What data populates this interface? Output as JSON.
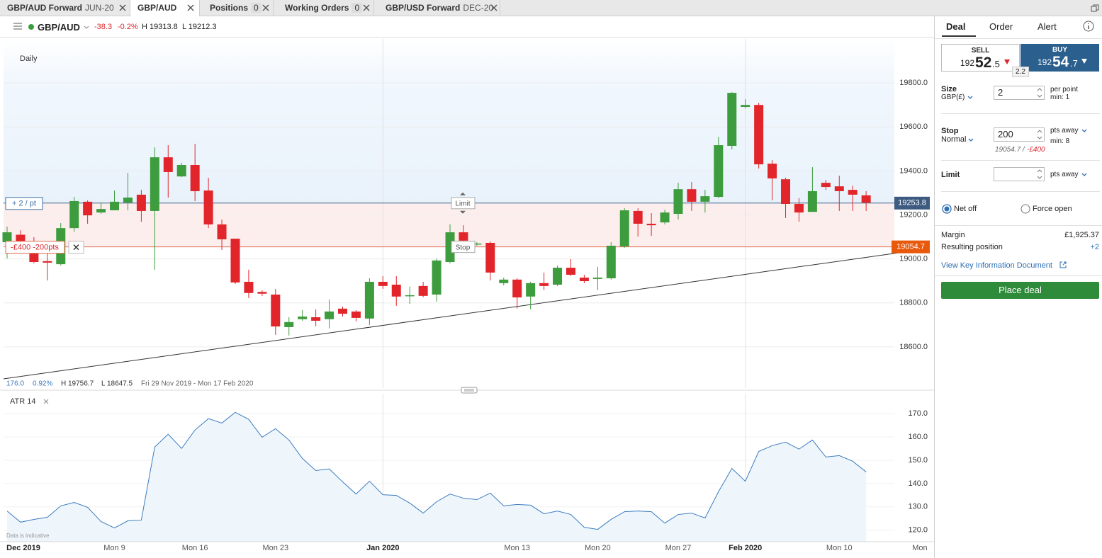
{
  "tabs": [
    {
      "name": "GBP/AUD Forward",
      "suffix": "JUN-20"
    },
    {
      "name": "GBP/AUD"
    },
    {
      "name": "Positions",
      "count": "0"
    },
    {
      "name": "Working Orders",
      "count": "0"
    },
    {
      "name": "GBP/USD Forward",
      "suffix": "DEC-20"
    }
  ],
  "instrument": {
    "name": "GBP/AUD",
    "change": "-38.3",
    "change_pct": "-0.2%",
    "high": "H 19313.8",
    "low": "L 19212.3"
  },
  "chart_data": [
    {
      "type": "candlestick",
      "title": "Daily",
      "categories": [
        null,
        "Dec 2019",
        null,
        null,
        null,
        null,
        null,
        null,
        "Mon 9",
        null,
        null,
        null,
        null,
        null,
        "Mon 16",
        null,
        null,
        null,
        null,
        null,
        "Mon 23",
        null,
        null,
        null,
        null,
        null,
        null,
        null,
        "Jan 2020",
        null,
        null,
        null,
        null,
        null,
        null,
        null,
        null,
        null,
        "Mon 13",
        null,
        null,
        null,
        null,
        null,
        "Mon 20",
        null,
        null,
        null,
        null,
        null,
        "Mon 27",
        null,
        null,
        null,
        null,
        "Feb 2020",
        null,
        null,
        null,
        null,
        null,
        null,
        "Mon 10",
        null,
        null,
        null,
        null,
        null,
        "Mon"
      ],
      "open": [
        19076,
        19110,
        19066,
        18990,
        18976,
        19140,
        19260,
        19211,
        19221,
        19256,
        19292,
        19218,
        19462,
        19375,
        19427,
        19311,
        19157,
        19092,
        18896,
        18850,
        18838,
        18690,
        18726,
        18735,
        18726,
        18774,
        18761,
        18729,
        18896,
        18883,
        18832,
        18877,
        18838,
        18986,
        19121,
        19066,
        19073,
        18890,
        18906,
        18829,
        18890,
        18883,
        18960,
        18915,
        18909,
        18912,
        19057,
        19218,
        19160,
        19166,
        19205,
        19317,
        19260,
        19282,
        19514,
        19691,
        19700,
        19433,
        19362,
        19250,
        19214,
        19346,
        19330,
        19314,
        19289,
        null,
        null,
        null,
        null
      ],
      "high": [
        19147,
        19130,
        19099,
        19066,
        19163,
        19282,
        19266,
        19253,
        19311,
        19391,
        19314,
        19507,
        19517,
        19437,
        19523,
        19369,
        19179,
        19092,
        18951,
        18857,
        18864,
        18735,
        18767,
        18770,
        18815,
        18783,
        18767,
        18912,
        18922,
        18922,
        18874,
        18896,
        19002,
        19157,
        19153,
        19076,
        19079,
        18915,
        18912,
        18896,
        18938,
        18970,
        18999,
        18928,
        18964,
        19076,
        19230,
        19230,
        19208,
        19224,
        19346,
        19350,
        19314,
        19555,
        19758,
        19726,
        19710,
        19449,
        19369,
        19276,
        19417,
        19359,
        19378,
        19333,
        19308,
        null,
        null,
        null,
        null
      ],
      "low": [
        19002,
        19040,
        18980,
        18902,
        18970,
        19124,
        19160,
        19205,
        19221,
        19221,
        19169,
        18951,
        19279,
        19372,
        19263,
        19140,
        19041,
        18886,
        18822,
        18832,
        18655,
        18652,
        18719,
        18694,
        18684,
        18738,
        18716,
        18700,
        18864,
        18787,
        18796,
        18826,
        18806,
        18980,
        19057,
        19060,
        18902,
        18880,
        18774,
        18771,
        18858,
        18877,
        18922,
        18890,
        18858,
        18906,
        19051,
        19102,
        19105,
        19157,
        19179,
        19218,
        19211,
        19276,
        19498,
        19684,
        19411,
        19266,
        19186,
        19169,
        19214,
        19314,
        19218,
        19218,
        19218,
        null,
        null,
        null,
        null
      ],
      "close": [
        19121,
        19075,
        18986,
        18983,
        19140,
        19263,
        19198,
        19227,
        19260,
        19279,
        19218,
        19462,
        19395,
        19427,
        19308,
        19157,
        19089,
        18893,
        18845,
        18842,
        18693,
        18713,
        18738,
        18719,
        18761,
        18751,
        18732,
        18896,
        18877,
        18829,
        18835,
        18832,
        18993,
        19121,
        19083,
        19070,
        18938,
        18906,
        18825,
        18890,
        18877,
        18960,
        18928,
        18899,
        18915,
        19060,
        19221,
        19160,
        19153,
        19211,
        19317,
        19260,
        19285,
        19517,
        19755,
        19700,
        19430,
        19366,
        19250,
        19211,
        19308,
        19327,
        19308,
        19292,
        19256,
        null,
        null,
        null,
        null
      ],
      "up_color": "#3d9c3d",
      "down_color": "#e1252b",
      "ylim": [
        18413,
        20000
      ],
      "yticks": [
        {
          "value": 18600,
          "label": "18600.0"
        },
        {
          "value": 18800,
          "label": "18800.0"
        },
        {
          "value": 19000,
          "label": "19000.0"
        },
        {
          "value": 19200,
          "label": "19200.0"
        },
        {
          "value": 19400,
          "label": "19400.0"
        },
        {
          "value": 19600,
          "label": "19600.0"
        },
        {
          "value": 19800,
          "label": "19800.0"
        }
      ],
      "grid": true,
      "price_line": 19253.8,
      "stop_line": 19054.7,
      "trendline": [
        18455,
        19028
      ],
      "position_label": "+ 2 / pt",
      "stop_label": "-£400 -200pts",
      "limit_tag": "Limit",
      "stop_tag": "Stop",
      "summary": {
        "change": "176.0",
        "change_pct": "0.92%",
        "high": "H 19756.7",
        "low": "L 18647.5",
        "range": "Fri 29 Nov 2019 - Mon 17 Feb 2020"
      }
    },
    {
      "type": "line",
      "title": "ATR 14",
      "values": [
        128.2,
        123.4,
        124.6,
        125.5,
        130.4,
        131.9,
        129.8,
        123.7,
        120.9,
        124.0,
        124.3,
        155.7,
        161.2,
        155.1,
        163.0,
        167.9,
        166.0,
        170.6,
        167.6,
        159.9,
        163.6,
        158.7,
        150.8,
        145.6,
        146.3,
        140.7,
        135.5,
        141.0,
        135.2,
        134.9,
        131.6,
        127.3,
        132.2,
        135.5,
        133.7,
        133.1,
        135.9,
        130.4,
        131.0,
        130.7,
        127.0,
        128.2,
        126.7,
        121.2,
        120.3,
        124.6,
        127.9,
        128.2,
        127.9,
        123.0,
        126.7,
        127.3,
        125.2,
        136.5,
        146.5,
        141.0,
        153.8,
        156.3,
        157.8,
        154.8,
        158.7,
        151.4,
        152.0,
        149.6,
        145.0,
        null,
        null,
        null,
        null
      ],
      "color": "#3b7cc0",
      "ylim": [
        115,
        178
      ],
      "yticks": [
        {
          "value": 120,
          "label": "120.0"
        },
        {
          "value": 130,
          "label": "130.0"
        },
        {
          "value": 140,
          "label": "140.0"
        },
        {
          "value": 150,
          "label": "150.0"
        },
        {
          "value": 160,
          "label": "160.0"
        },
        {
          "value": 170,
          "label": "170.0"
        }
      ],
      "note": "Data is indicative"
    }
  ],
  "deal_panel": {
    "tabs": [
      "Deal",
      "Order",
      "Alert"
    ],
    "sell": {
      "label": "SELL",
      "big_figure": "192",
      "pips": "52",
      "fraction": ".5"
    },
    "buy": {
      "label": "BUY",
      "big_figure": "192",
      "pips": "54",
      "fraction": ".7"
    },
    "spread": "2.2",
    "size": {
      "label": "Size",
      "unit": "GBP(£)",
      "value": "2",
      "note": "per point",
      "min": "min: 1"
    },
    "stop": {
      "label": "Stop",
      "kind": "Normal",
      "value": "200",
      "note": "pts away",
      "min": "min: 8",
      "level": "19054.7 /",
      "loss": "-£400"
    },
    "limit": {
      "label": "Limit",
      "note": "pts away"
    },
    "options": [
      "Net off",
      "Force open"
    ],
    "margin": {
      "label": "Margin",
      "value": "£1,925.37"
    },
    "resulting": {
      "label": "Resulting position",
      "value": "+2"
    },
    "kid_link": "View Key Information Document",
    "button": "Place deal"
  }
}
